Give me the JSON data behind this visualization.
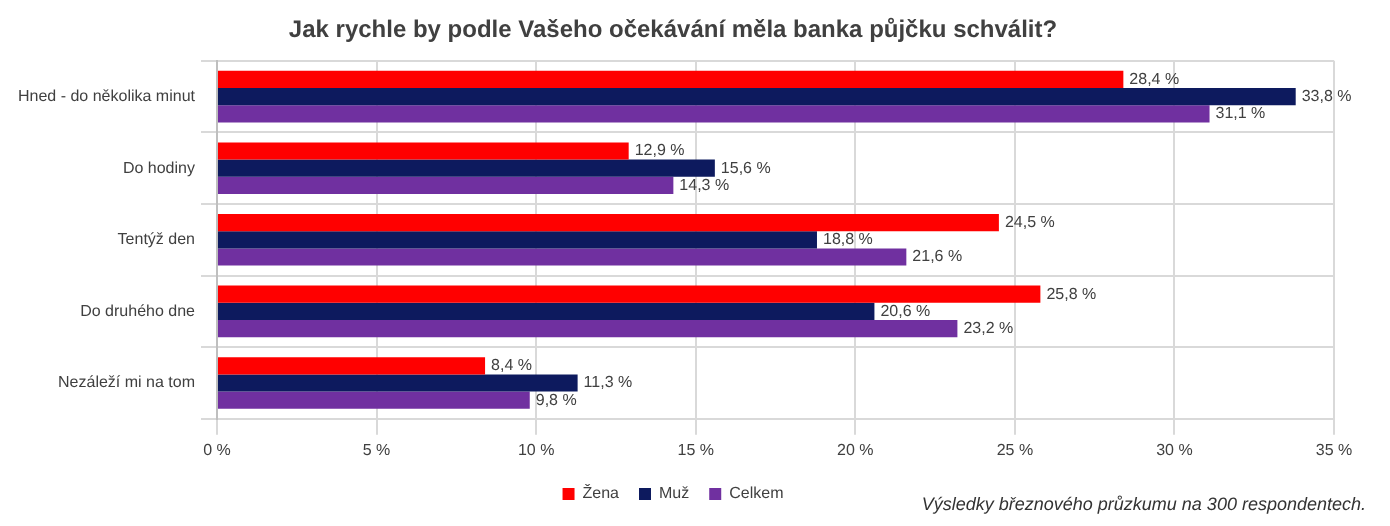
{
  "chart_data": {
    "type": "bar",
    "orientation": "horizontal",
    "title": "Jak rychle by podle Vašeho očekávání měla banka půjčku schválit?",
    "categories": [
      "Hned - do několika minut",
      "Do hodiny",
      "Tentýž den",
      "Do druhého dne",
      "Nezáleží mi na tom"
    ],
    "series": [
      {
        "name": "Žena",
        "color": "#ff0000",
        "values": [
          28.4,
          12.9,
          24.5,
          25.8,
          8.4
        ],
        "value_labels": [
          "28,4 %",
          "12,9 %",
          "24,5 %",
          "25,8 %",
          "8,4 %"
        ]
      },
      {
        "name": "Muž",
        "color": "#0d1a5e",
        "values": [
          33.8,
          15.6,
          18.8,
          20.6,
          11.3
        ],
        "value_labels": [
          "33,8 %",
          "15,6 %",
          "18,8 %",
          "20,6 %",
          "11,3 %"
        ]
      },
      {
        "name": "Celkem",
        "color": "#7030a0",
        "values": [
          31.1,
          14.3,
          21.6,
          23.2,
          9.8
        ],
        "value_labels": [
          "31,1 %",
          "14,3 %",
          "21,6 %",
          "23,2 %",
          "9,8 %"
        ]
      }
    ],
    "xlim": [
      0,
      35
    ],
    "xticks": [
      {
        "value": 0,
        "label": "0 %"
      },
      {
        "value": 5,
        "label": "5 %"
      },
      {
        "value": 10,
        "label": "10 %"
      },
      {
        "value": 15,
        "label": "15 %"
      },
      {
        "value": 20,
        "label": "20 %"
      },
      {
        "value": 25,
        "label": "25 %"
      },
      {
        "value": 30,
        "label": "30 %"
      },
      {
        "value": 35,
        "label": "35 %"
      }
    ],
    "grid": true,
    "legend": "bottom",
    "annotations": [
      "Výsledky březnového průzkumu na 300 respondentech."
    ]
  }
}
